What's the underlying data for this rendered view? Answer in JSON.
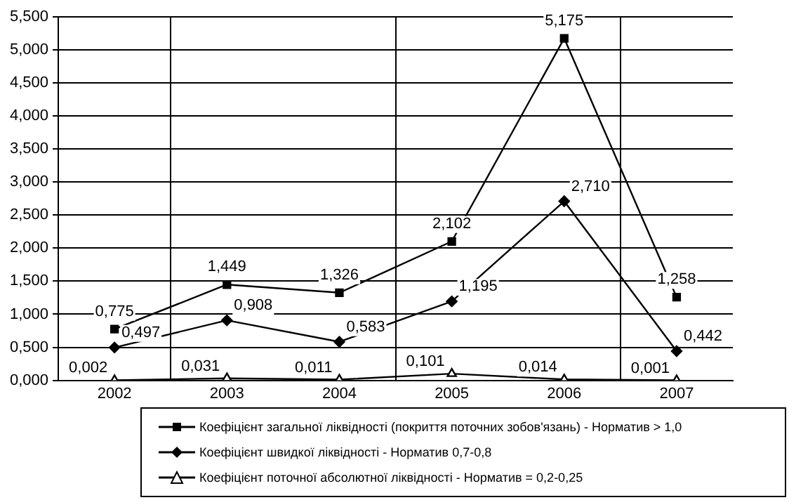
{
  "chart_data": {
    "type": "line",
    "categories": [
      "2002",
      "2003",
      "2004",
      "2005",
      "2006",
      "2007"
    ],
    "series": [
      {
        "name": "Коефіцієнт загальної ліквідності (покриття поточних зобов'язань) - Норматив > 1,0",
        "color": "#000000",
        "marker": "square",
        "values": [
          0.775,
          1.449,
          1.326,
          2.102,
          5.175,
          1.258
        ],
        "value_labels": [
          "0,775",
          "1,449",
          "1,326",
          "2,102",
          "5,175",
          "1,258"
        ]
      },
      {
        "name": "Коефіцієнт швидкої ліквідності - Норматив 0,7-0,8",
        "color": "#000000",
        "marker": "diamond",
        "values": [
          0.497,
          0.908,
          0.583,
          1.195,
          2.71,
          0.442
        ],
        "value_labels": [
          "0,497",
          "0,908",
          "0,583",
          "1,195",
          "2,710",
          "0,442"
        ]
      },
      {
        "name": "Коефіцієнт поточної абсолютної ліквідності - Норматив = 0,2-0,25",
        "color": "#000000",
        "marker": "triangle",
        "values": [
          0.002,
          0.031,
          0.011,
          0.101,
          0.014,
          0.001
        ],
        "value_labels": [
          "0,002",
          "0,031",
          "0,011",
          "0,101",
          "0,014",
          "0,001"
        ]
      }
    ],
    "ylim": [
      0,
      5.5
    ],
    "yticks": [
      {
        "value": 0,
        "label": "0,000"
      },
      {
        "value": 0.5,
        "label": "0,500"
      },
      {
        "value": 1,
        "label": "1,000"
      },
      {
        "value": 1.5,
        "label": "1,500"
      },
      {
        "value": 2,
        "label": "2,000"
      },
      {
        "value": 2.5,
        "label": "2,500"
      },
      {
        "value": 3,
        "label": "3,000"
      },
      {
        "value": 3.5,
        "label": "3,500"
      },
      {
        "value": 4,
        "label": "4,000"
      },
      {
        "value": 4.5,
        "label": "4,500"
      },
      {
        "value": 5,
        "label": "5,000"
      },
      {
        "value": 5.5,
        "label": "5,500"
      }
    ],
    "grid": true,
    "legend": "bottom",
    "line_style": "solid"
  }
}
